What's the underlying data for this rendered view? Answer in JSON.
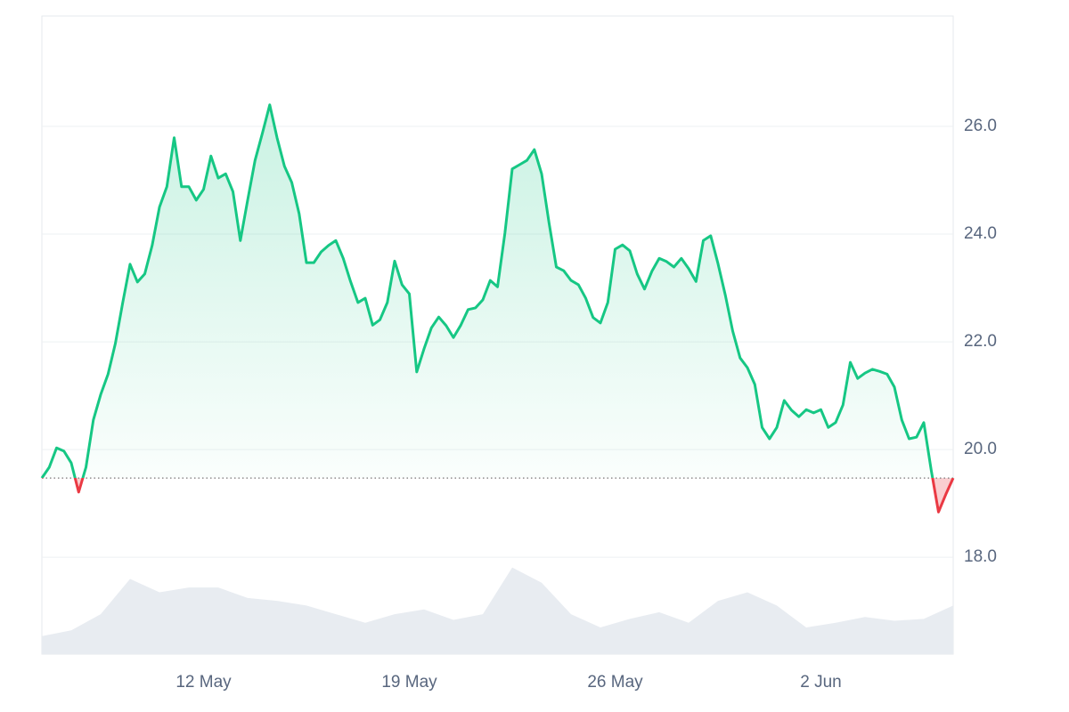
{
  "chart_data": {
    "type": "line",
    "series": [
      {
        "color": "#16c784",
        "down_color": "#ea3943",
        "values": [
          19.47,
          19.67,
          20.03,
          19.97,
          19.75,
          19.21,
          19.67,
          20.55,
          21.02,
          21.4,
          21.97,
          22.73,
          23.44,
          23.11,
          23.26,
          23.79,
          24.5,
          24.88,
          25.79,
          24.88,
          24.88,
          24.63,
          24.83,
          25.45,
          25.04,
          25.12,
          24.79,
          23.88,
          24.63,
          25.37,
          25.87,
          26.4,
          25.79,
          25.26,
          24.96,
          24.38,
          23.47,
          23.47,
          23.67,
          23.79,
          23.88,
          23.55,
          23.12,
          22.73,
          22.81,
          22.31,
          22.41,
          22.73,
          23.5,
          23.06,
          22.89,
          21.44,
          21.87,
          22.26,
          22.46,
          22.3,
          22.08,
          22.31,
          22.6,
          22.63,
          22.78,
          23.14,
          23.02,
          24.02,
          25.21,
          25.29,
          25.37,
          25.57,
          25.12,
          24.21,
          23.39,
          23.32,
          23.14,
          23.06,
          22.81,
          22.45,
          22.35,
          22.73,
          23.72,
          23.8,
          23.69,
          23.26,
          22.98,
          23.31,
          23.55,
          23.49,
          23.39,
          23.55,
          23.36,
          23.12,
          23.88,
          23.97,
          23.45,
          22.86,
          22.2,
          21.7,
          21.52,
          21.21,
          20.41,
          20.2,
          20.41,
          20.91,
          20.73,
          20.61,
          20.74,
          20.68,
          20.74,
          20.41,
          20.5,
          20.83,
          21.62,
          21.32,
          21.42,
          21.49,
          21.45,
          21.4,
          21.16,
          20.55,
          20.2,
          20.23,
          20.5,
          19.62,
          18.84,
          19.17,
          19.47
        ]
      }
    ],
    "volume": {
      "color": "#e8ecf1",
      "ylim": [
        0,
        100
      ],
      "values": [
        19,
        25,
        42,
        79,
        65,
        70,
        70,
        59,
        56,
        51,
        42,
        33,
        42,
        47,
        36,
        42,
        91,
        75,
        42,
        28,
        37,
        44,
        33,
        56,
        65,
        51,
        28,
        33,
        39,
        35,
        37,
        51
      ]
    },
    "xlim": [
      0,
      124
    ],
    "xticks": [
      {
        "value": 22,
        "label": "12 May"
      },
      {
        "value": 50,
        "label": "19 May"
      },
      {
        "value": 78,
        "label": "26 May"
      },
      {
        "value": 106,
        "label": "2 Jun"
      }
    ],
    "ylim": [
      16.2,
      28.05
    ],
    "yticks": [
      {
        "value": 18,
        "label": "18.0"
      },
      {
        "value": 20,
        "label": "20.0"
      },
      {
        "value": 22,
        "label": "22.0"
      },
      {
        "value": 24,
        "label": "24.0"
      },
      {
        "value": 26,
        "label": "26.0"
      }
    ],
    "grid": true
  }
}
